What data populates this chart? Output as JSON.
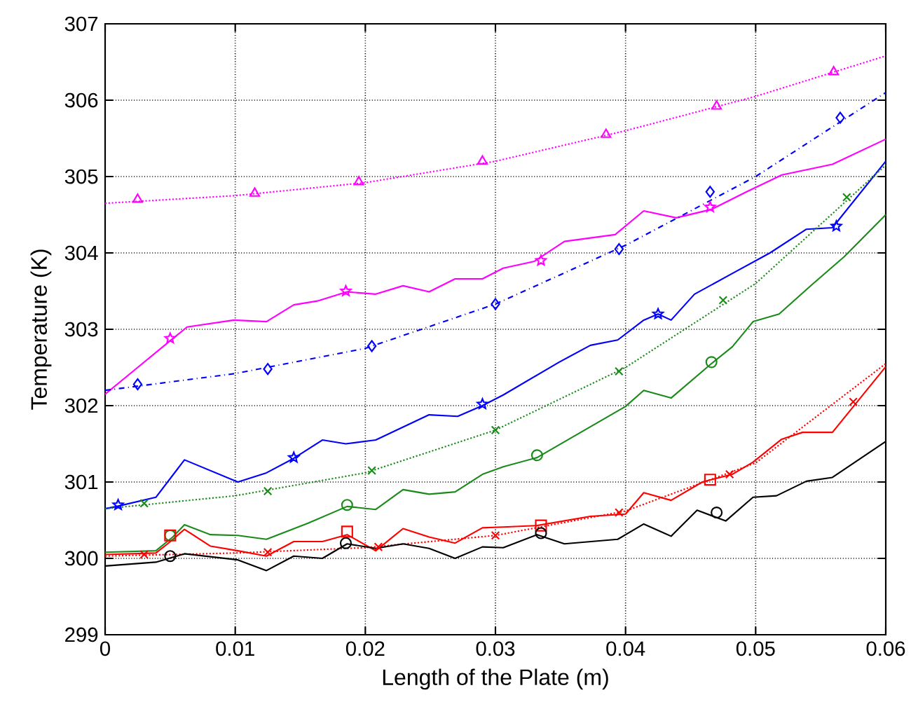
{
  "chart_data": {
    "type": "line",
    "xlabel": "Length of the Plate (m)",
    "ylabel": "Temperature (K)",
    "xlim": [
      0,
      0.06
    ],
    "ylim": [
      299,
      307
    ],
    "xticks": [
      0,
      0.01,
      0.02,
      0.03,
      0.04,
      0.05,
      0.06
    ],
    "yticks": [
      299,
      300,
      301,
      302,
      303,
      304,
      305,
      306,
      307
    ],
    "grid": true,
    "series": [
      {
        "type": "line",
        "color": "#ff00ff",
        "line_style": "dotted",
        "marker": "none",
        "x": [
          0,
          0.01,
          0.02,
          0.03,
          0.04,
          0.05,
          0.06
        ],
        "values": [
          304.65,
          304.75,
          304.92,
          305.2,
          305.6,
          306.05,
          306.58
        ]
      },
      {
        "type": "scatter",
        "color": "#ff00ff",
        "marker": "triangle",
        "x": [
          0.0025,
          0.0115,
          0.0195,
          0.029,
          0.0385,
          0.047,
          0.056
        ],
        "values": [
          304.7,
          304.78,
          304.93,
          305.2,
          305.55,
          305.92,
          306.37
        ]
      },
      {
        "type": "line",
        "color": "#ff00ff",
        "line_style": "solid",
        "marker": "none",
        "x": [
          0,
          0.0025,
          0.005,
          0.0063,
          0.0099,
          0.0124,
          0.0145,
          0.0163,
          0.0186,
          0.0208,
          0.0229,
          0.0249,
          0.0269,
          0.029,
          0.0306,
          0.033,
          0.0353,
          0.0392,
          0.0414,
          0.0439,
          0.0466,
          0.0493,
          0.052,
          0.0559,
          0.06
        ],
        "values": [
          302.15,
          302.5,
          302.85,
          303.03,
          303.12,
          303.1,
          303.32,
          303.37,
          303.49,
          303.46,
          303.57,
          303.49,
          303.66,
          303.66,
          303.8,
          303.89,
          304.15,
          304.24,
          304.55,
          304.46,
          304.57,
          304.8,
          305.02,
          305.16,
          305.49
        ]
      },
      {
        "type": "scatter",
        "color": "#ff00ff",
        "marker": "star",
        "x": [
          0.005,
          0.0185,
          0.0335,
          0.0465
        ],
        "values": [
          302.88,
          303.5,
          303.9,
          304.6
        ]
      },
      {
        "type": "line",
        "color": "#0000ff",
        "line_style": "dashed",
        "marker": "none",
        "x": [
          0,
          0.01,
          0.02,
          0.03,
          0.04,
          0.05,
          0.06
        ],
        "values": [
          302.2,
          302.42,
          302.75,
          303.33,
          304.1,
          305.0,
          306.1
        ]
      },
      {
        "type": "scatter",
        "color": "#0000ff",
        "marker": "diamond",
        "x": [
          0.0025,
          0.0125,
          0.0205,
          0.03,
          0.0395,
          0.0465,
          0.0565
        ],
        "values": [
          302.28,
          302.48,
          302.78,
          303.33,
          304.05,
          304.8,
          305.77
        ]
      },
      {
        "type": "line",
        "color": "#0000ff",
        "line_style": "solid",
        "marker": "none",
        "x": [
          0,
          0.0009,
          0.0039,
          0.0061,
          0.0102,
          0.0124,
          0.0145,
          0.0167,
          0.0185,
          0.0208,
          0.0249,
          0.0271,
          0.029,
          0.0306,
          0.0349,
          0.0373,
          0.0394,
          0.0414,
          0.0425,
          0.0435,
          0.0453,
          0.0482,
          0.0511,
          0.0539,
          0.0559,
          0.06
        ],
        "values": [
          300.65,
          300.68,
          300.8,
          301.29,
          301.0,
          301.12,
          301.31,
          301.55,
          301.5,
          301.55,
          301.88,
          301.86,
          302.0,
          302.14,
          302.57,
          302.79,
          302.86,
          303.12,
          303.2,
          303.12,
          303.46,
          303.73,
          304.0,
          304.31,
          304.33,
          305.2
        ]
      },
      {
        "type": "scatter",
        "color": "#0000ff",
        "marker": "star",
        "x": [
          0.001,
          0.0145,
          0.029,
          0.0425,
          0.0562
        ],
        "values": [
          300.7,
          301.32,
          302.02,
          303.2,
          304.35
        ]
      },
      {
        "type": "line",
        "color": "#1a8a1a",
        "line_style": "dotted",
        "marker": "none",
        "x": [
          0,
          0.01,
          0.02,
          0.03,
          0.04,
          0.05,
          0.06
        ],
        "values": [
          300.65,
          300.82,
          301.12,
          301.68,
          302.5,
          303.6,
          305.15
        ]
      },
      {
        "type": "scatter",
        "color": "#1a8a1a",
        "marker": "cross",
        "x": [
          0.003,
          0.0125,
          0.0205,
          0.03,
          0.0395,
          0.0475,
          0.057
        ],
        "values": [
          300.72,
          300.88,
          301.15,
          301.68,
          302.45,
          303.38,
          304.73
        ]
      },
      {
        "type": "line",
        "color": "#1a8a1a",
        "line_style": "solid",
        "marker": "none",
        "x": [
          0,
          0.0039,
          0.0052,
          0.0061,
          0.0081,
          0.0102,
          0.0124,
          0.0156,
          0.0186,
          0.0208,
          0.0229,
          0.0249,
          0.0269,
          0.029,
          0.0306,
          0.0332,
          0.04,
          0.0414,
          0.0435,
          0.0466,
          0.0482,
          0.0498,
          0.0518,
          0.0543,
          0.0568,
          0.06
        ],
        "values": [
          300.08,
          300.1,
          300.28,
          300.44,
          300.31,
          300.3,
          300.25,
          300.46,
          300.68,
          300.64,
          300.9,
          300.84,
          300.87,
          301.1,
          301.2,
          301.32,
          301.99,
          302.2,
          302.1,
          302.55,
          302.77,
          303.1,
          303.2,
          303.58,
          303.95,
          304.5
        ]
      },
      {
        "type": "scatter",
        "color": "#1a8a1a",
        "marker": "circle",
        "x": [
          0.005,
          0.0186,
          0.0332,
          0.0466
        ],
        "values": [
          300.3,
          300.7,
          301.35,
          302.57
        ]
      },
      {
        "type": "line",
        "color": "#ff0000",
        "line_style": "solid",
        "marker": "none",
        "x": [
          0,
          0.0039,
          0.0048,
          0.0061,
          0.0081,
          0.0102,
          0.0124,
          0.0145,
          0.0167,
          0.0186,
          0.0208,
          0.0229,
          0.0249,
          0.0269,
          0.029,
          0.0306,
          0.0332,
          0.0373,
          0.04,
          0.0414,
          0.0435,
          0.0459,
          0.0482,
          0.0498,
          0.052,
          0.0536,
          0.0559,
          0.06
        ],
        "values": [
          300.05,
          300.07,
          300.19,
          300.38,
          300.16,
          300.1,
          300.03,
          300.22,
          300.22,
          300.31,
          300.1,
          300.39,
          300.28,
          300.2,
          300.4,
          300.41,
          300.43,
          300.55,
          300.58,
          300.86,
          300.76,
          301.0,
          301.1,
          301.26,
          301.56,
          301.65,
          301.65,
          302.51
        ]
      },
      {
        "type": "scatter",
        "color": "#ff0000",
        "marker": "square",
        "x": [
          0.005,
          0.0186,
          0.0335,
          0.0465
        ],
        "values": [
          300.3,
          300.35,
          300.43,
          301.03
        ]
      },
      {
        "type": "line",
        "color": "#ff0000",
        "line_style": "dotted",
        "marker": "none",
        "x": [
          0,
          0.01,
          0.02,
          0.03,
          0.04,
          0.05,
          0.06
        ],
        "values": [
          300.03,
          300.07,
          300.14,
          300.3,
          300.62,
          301.25,
          302.55
        ]
      },
      {
        "type": "scatter",
        "color": "#ff0000",
        "marker": "cross",
        "x": [
          0.003,
          0.0125,
          0.021,
          0.03,
          0.0395,
          0.048,
          0.0575
        ],
        "values": [
          300.05,
          300.08,
          300.15,
          300.3,
          300.6,
          301.1,
          302.05
        ]
      },
      {
        "type": "line",
        "color": "#000000",
        "line_style": "solid",
        "marker": "none",
        "x": [
          0,
          0.0039,
          0.0061,
          0.0102,
          0.0124,
          0.0145,
          0.0167,
          0.0186,
          0.0208,
          0.0229,
          0.0249,
          0.0269,
          0.029,
          0.0306,
          0.0332,
          0.0353,
          0.0394,
          0.0414,
          0.0435,
          0.0455,
          0.0477,
          0.0498,
          0.0516,
          0.0539,
          0.0559,
          0.06
        ],
        "values": [
          299.9,
          299.95,
          300.06,
          299.98,
          299.84,
          300.03,
          300.0,
          300.19,
          300.13,
          300.19,
          300.13,
          300.0,
          300.15,
          300.14,
          300.31,
          300.19,
          300.25,
          300.45,
          300.29,
          300.63,
          300.49,
          300.8,
          300.82,
          301.01,
          301.06,
          301.53
        ]
      },
      {
        "type": "scatter",
        "color": "#000000",
        "marker": "circle",
        "x": [
          0.005,
          0.0185,
          0.0335,
          0.047
        ],
        "values": [
          300.03,
          300.2,
          300.33,
          300.6
        ]
      }
    ]
  }
}
